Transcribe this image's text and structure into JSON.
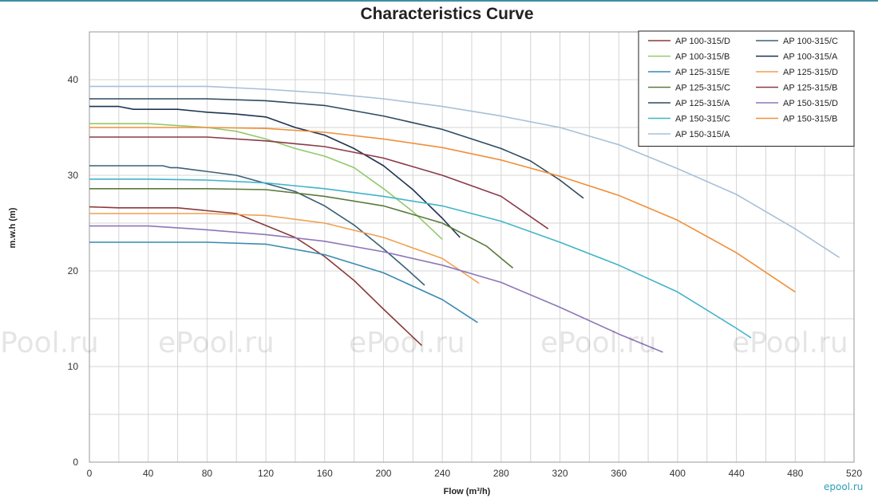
{
  "chart_data": {
    "type": "line",
    "title": "Characteristics Curve",
    "xlabel": "Flow (m³/h)",
    "ylabel": "m.w.h (m)",
    "xlim": [
      0,
      520
    ],
    "ylim": [
      0,
      45
    ],
    "x_ticks": [
      0,
      40,
      80,
      120,
      160,
      200,
      240,
      280,
      320,
      360,
      400,
      440,
      480,
      520
    ],
    "y_ticks": [
      0,
      10,
      20,
      30,
      40
    ],
    "grid": true,
    "legend_position": "top-right",
    "series": [
      {
        "name": "AP 100-315/D",
        "color": "#8b3a3a",
        "x": [
          0,
          20,
          60,
          100,
          140,
          160,
          180,
          200,
          226
        ],
        "y": [
          26.7,
          26.6,
          26.6,
          26.0,
          23.5,
          21.5,
          19.0,
          16.0,
          12.2
        ]
      },
      {
        "name": "AP 100-315/C",
        "color": "#3a6078",
        "x": [
          0,
          20,
          50,
          55,
          60,
          100,
          140,
          160,
          180,
          200,
          215,
          228
        ],
        "y": [
          31.0,
          31.0,
          31.0,
          30.8,
          30.8,
          30.0,
          28.3,
          26.8,
          24.8,
          22.3,
          20.3,
          18.5
        ]
      },
      {
        "name": "AP 100-315/B",
        "color": "#92c96b",
        "x": [
          0,
          20,
          40,
          60,
          80,
          100,
          120,
          140,
          160,
          180,
          200,
          220,
          240
        ],
        "y": [
          35.4,
          35.4,
          35.4,
          35.2,
          35.0,
          34.6,
          33.8,
          32.8,
          32.0,
          30.8,
          28.6,
          26.2,
          23.3
        ]
      },
      {
        "name": "AP 100-315/A",
        "color": "#1f3350",
        "x": [
          0,
          20,
          30,
          60,
          80,
          100,
          120,
          140,
          160,
          180,
          200,
          220,
          240,
          252
        ],
        "y": [
          37.2,
          37.2,
          36.9,
          36.9,
          36.6,
          36.4,
          36.1,
          35.0,
          34.2,
          32.8,
          31.0,
          28.5,
          25.5,
          23.5
        ]
      },
      {
        "name": "AP 125-315/E",
        "color": "#3a8ab0",
        "x": [
          0,
          40,
          80,
          120,
          160,
          200,
          240,
          264
        ],
        "y": [
          23.0,
          23.0,
          23.0,
          22.8,
          21.7,
          19.8,
          17.0,
          14.6
        ]
      },
      {
        "name": "AP 125-315/D",
        "color": "#f0a050",
        "x": [
          0,
          40,
          80,
          120,
          160,
          200,
          240,
          265
        ],
        "y": [
          26.0,
          26.0,
          26.0,
          25.8,
          25.0,
          23.5,
          21.3,
          18.7
        ]
      },
      {
        "name": "AP 125-315/C",
        "color": "#5a7a3a",
        "x": [
          0,
          40,
          80,
          120,
          160,
          200,
          240,
          270,
          288
        ],
        "y": [
          28.6,
          28.6,
          28.6,
          28.5,
          27.8,
          26.8,
          25.0,
          22.6,
          20.3
        ]
      },
      {
        "name": "AP 125-315/B",
        "color": "#8b3a48",
        "x": [
          0,
          40,
          80,
          120,
          160,
          200,
          240,
          280,
          312
        ],
        "y": [
          34.0,
          34.0,
          34.0,
          33.6,
          33.0,
          31.8,
          30.0,
          27.8,
          24.4
        ]
      },
      {
        "name": "AP 125-315/A",
        "color": "#2d4a60",
        "x": [
          0,
          40,
          80,
          120,
          160,
          200,
          240,
          280,
          300,
          320,
          336
        ],
        "y": [
          38.0,
          38.0,
          38.0,
          37.8,
          37.3,
          36.2,
          34.8,
          32.8,
          31.5,
          29.5,
          27.6
        ]
      },
      {
        "name": "AP 150-315/D",
        "color": "#8e76b8",
        "x": [
          0,
          40,
          80,
          120,
          160,
          200,
          240,
          280,
          320,
          360,
          390
        ],
        "y": [
          24.7,
          24.7,
          24.3,
          23.8,
          23.1,
          22.0,
          20.6,
          18.8,
          16.2,
          13.4,
          11.5
        ]
      },
      {
        "name": "AP 150-315/C",
        "color": "#40b4c8",
        "x": [
          0,
          40,
          80,
          120,
          160,
          200,
          240,
          280,
          320,
          360,
          400,
          440,
          450
        ],
        "y": [
          29.6,
          29.6,
          29.5,
          29.2,
          28.6,
          27.8,
          26.8,
          25.2,
          23.0,
          20.6,
          17.8,
          14.0,
          13.0
        ]
      },
      {
        "name": "AP 150-315/B",
        "color": "#f0903a",
        "x": [
          0,
          40,
          80,
          120,
          160,
          200,
          240,
          280,
          320,
          360,
          400,
          440,
          480
        ],
        "y": [
          35.0,
          35.0,
          35.0,
          34.9,
          34.5,
          33.8,
          32.9,
          31.6,
          29.9,
          27.9,
          25.3,
          21.9,
          17.8
        ]
      },
      {
        "name": "AP 150-315/A",
        "color": "#a8c0d8",
        "x": [
          0,
          40,
          80,
          120,
          160,
          200,
          240,
          280,
          320,
          360,
          400,
          440,
          480,
          510
        ],
        "y": [
          39.3,
          39.3,
          39.3,
          39.0,
          38.6,
          38.0,
          37.2,
          36.2,
          35.0,
          33.2,
          30.7,
          28.0,
          24.4,
          21.4
        ]
      }
    ]
  },
  "watermarks": [
    "ePool.ru",
    "ePool.ru",
    "ePool.ru",
    "ePool.ru",
    "ePool.ru"
  ],
  "corner_logo": "epool.ru"
}
